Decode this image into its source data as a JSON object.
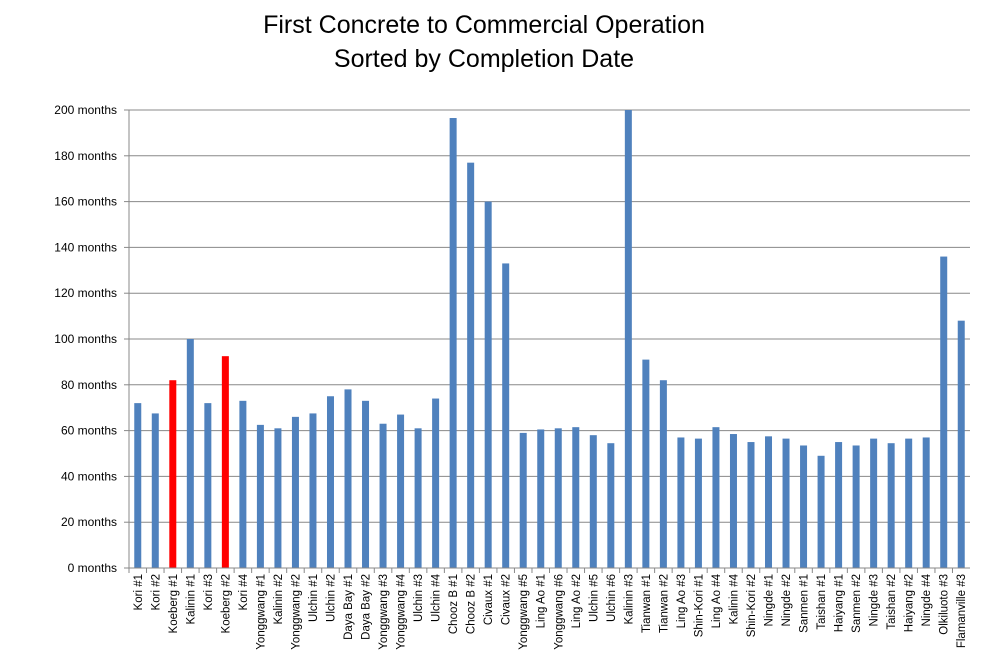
{
  "chart_data": {
    "type": "bar",
    "title_lines": [
      "First Concrete to Commercial Operation",
      "Sorted by Completion Date"
    ],
    "xlabel": "",
    "ylabel": "",
    "ylim": [
      0,
      200
    ],
    "y_ticks": [
      "0 months",
      "20 months",
      "40 months",
      "60 months",
      "80 months",
      "100 months",
      "120 months",
      "140 months",
      "160 months",
      "180 months",
      "200 months"
    ],
    "grid": true,
    "legend": "none",
    "colors": {
      "default": "#4F81BD",
      "highlight": "#FF0000",
      "grid": "#888888"
    },
    "categories": [
      "Kori #1",
      "Kori #2",
      "Koeberg #1",
      "Kalinin #1",
      "Kori #3",
      "Koeberg #2",
      "Kori #4",
      "Yonggwang #1",
      "Kalinin #2",
      "Yonggwang #2",
      "Ulchin #1",
      "Ulchin #2",
      "Daya Bay #1",
      "Daya Bay #2",
      "Yonggwang #3",
      "Yonggwang #4",
      "Ulchin #3",
      "Ulchin #4",
      "Chooz B #1",
      "Chooz B #2",
      "Civaux #1",
      "Civaux #2",
      "Yonggwang #5",
      "Ling Ao #1",
      "Yonggwang #6",
      "Ling Ao #2",
      "Ulchin #5",
      "Ulchin #6",
      "Kalinin #3",
      "Tianwan #1",
      "Tianwan #2",
      "Ling Ao #3",
      "Shin-Kori #1",
      "Ling Ao #4",
      "Kalinin #4",
      "Shin-Kori #2",
      "Ningde #1",
      "Ningde #2",
      "Sanmen #1",
      "Taishan #1",
      "Haiyang #1",
      "Sanmen #2",
      "Ningde #3",
      "Taishan #2",
      "Haiyang #2",
      "Ningde #4",
      "Olkiluoto #3",
      "Flamanville #3"
    ],
    "values": [
      72,
      67.5,
      82,
      100,
      72,
      92.5,
      73,
      62.5,
      61,
      66,
      67.5,
      75,
      78,
      73,
      63,
      67,
      61,
      74,
      196.5,
      177,
      160,
      133,
      59,
      60.5,
      61,
      61.5,
      58,
      54.5,
      200,
      91,
      82,
      57,
      56.5,
      61.5,
      58.5,
      55,
      57.5,
      56.5,
      53.5,
      49,
      55,
      53.5,
      56.5,
      54.5,
      56.5,
      57,
      136,
      108
    ],
    "highlight": [
      "Koeberg #1",
      "Koeberg #2"
    ]
  }
}
